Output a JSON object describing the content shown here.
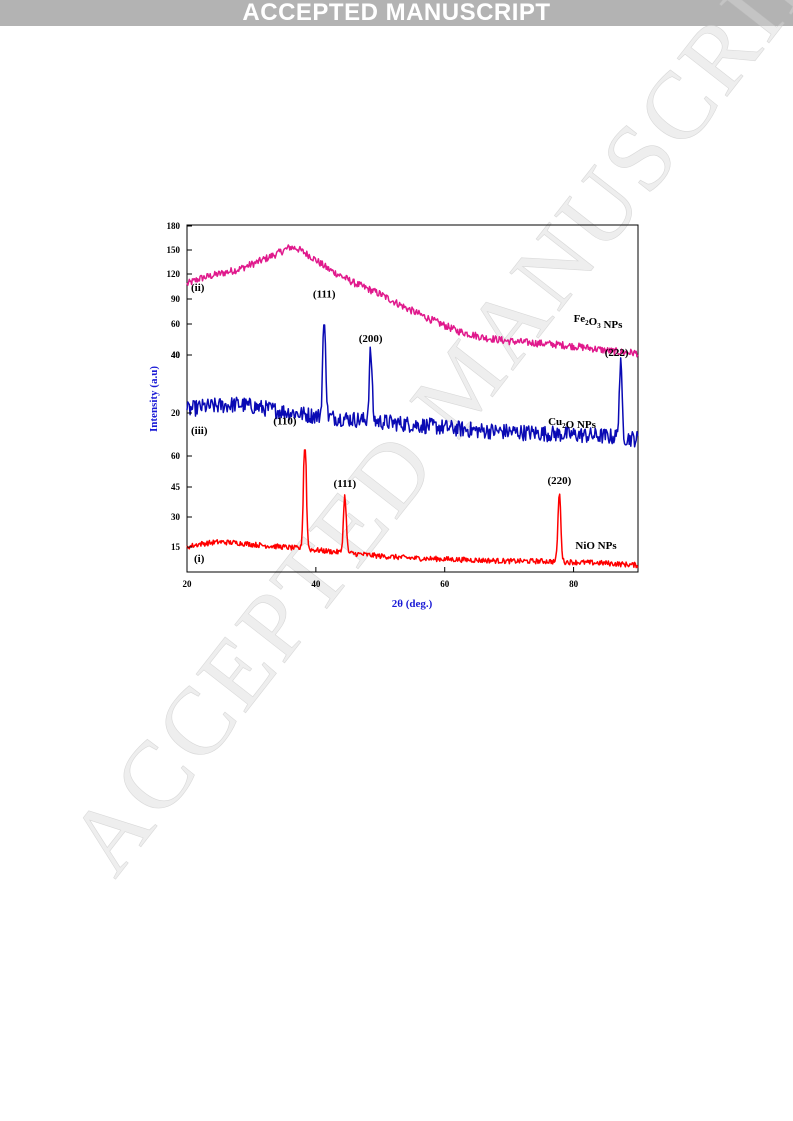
{
  "header": {
    "banner": "ACCEPTED MANUSCRIPT"
  },
  "watermark": "ACCEPTED MANUSCRIPT",
  "chart_data": {
    "type": "line",
    "xlabel": "2θ (deg.)",
    "ylabel": "Intensity (a.u)",
    "xlim": [
      20,
      90
    ],
    "x_ticks": [
      20,
      40,
      60,
      80
    ],
    "grid": false,
    "legend": "none",
    "panels": [
      {
        "series_label": "Fe2O3 NPs",
        "roman": "(ii)",
        "color": "#e0198c",
        "ylim": [
          40,
          180
        ],
        "y_ticks": [
          60,
          90,
          120,
          150,
          180
        ],
        "extra_tick": 40,
        "baseline": [
          [
            20,
            117
          ],
          [
            22,
            123
          ],
          [
            25,
            128
          ],
          [
            28,
            133
          ],
          [
            31,
            141
          ],
          [
            34,
            150
          ],
          [
            36,
            157
          ],
          [
            37,
            156
          ],
          [
            39,
            148
          ],
          [
            42,
            133
          ],
          [
            46,
            118
          ],
          [
            50,
            106
          ],
          [
            54,
            91
          ],
          [
            58,
            78
          ],
          [
            62,
            66
          ],
          [
            66,
            59
          ],
          [
            70,
            55
          ],
          [
            74,
            53
          ],
          [
            78,
            51
          ],
          [
            82,
            48
          ],
          [
            86,
            44
          ],
          [
            90,
            42
          ]
        ],
        "peaks": []
      },
      {
        "series_label": "Cu2O NPs",
        "roman": "(iii)",
        "color": "#0a0ab4",
        "ylim": [
          0,
          50
        ],
        "y_ticks": [
          20,
          40
        ],
        "baseline": [
          [
            20,
            21
          ],
          [
            22,
            22
          ],
          [
            25,
            22.5
          ],
          [
            28,
            23
          ],
          [
            31,
            22
          ],
          [
            35,
            20.5
          ],
          [
            40,
            19
          ],
          [
            45,
            18
          ],
          [
            50,
            17
          ],
          [
            55,
            16
          ],
          [
            60,
            15
          ],
          [
            65,
            14
          ],
          [
            70,
            13.5
          ],
          [
            75,
            13
          ],
          [
            80,
            12.5
          ],
          [
            85,
            12
          ],
          [
            90,
            11
          ]
        ],
        "peaks": [
          {
            "label": "(111)",
            "x": 41.3,
            "height": 38
          },
          {
            "label": "(200)",
            "x": 48.5,
            "height": 24
          },
          {
            "label": "(222)",
            "x": 87.3,
            "height": 25
          }
        ]
      },
      {
        "series_label": "NiO NPs",
        "roman": "(i)",
        "color": "#ff0000",
        "ylim": [
          0,
          65
        ],
        "y_ticks": [
          15,
          30,
          45,
          60
        ],
        "baseline": [
          [
            20,
            15
          ],
          [
            22,
            16.5
          ],
          [
            25,
            17.5
          ],
          [
            28,
            17
          ],
          [
            31,
            16
          ],
          [
            35,
            15
          ],
          [
            40,
            13.5
          ],
          [
            45,
            12
          ],
          [
            50,
            10.5
          ],
          [
            55,
            9.5
          ],
          [
            60,
            9
          ],
          [
            65,
            8.5
          ],
          [
            70,
            8
          ],
          [
            75,
            8
          ],
          [
            80,
            7.5
          ],
          [
            85,
            7
          ],
          [
            90,
            6
          ]
        ],
        "peaks": [
          {
            "label": "(110)",
            "x": 38.3,
            "height": 57
          },
          {
            "label": "(111)",
            "x": 44.5,
            "height": 28
          },
          {
            "label": "(220)",
            "x": 77.8,
            "height": 34
          }
        ]
      }
    ]
  }
}
